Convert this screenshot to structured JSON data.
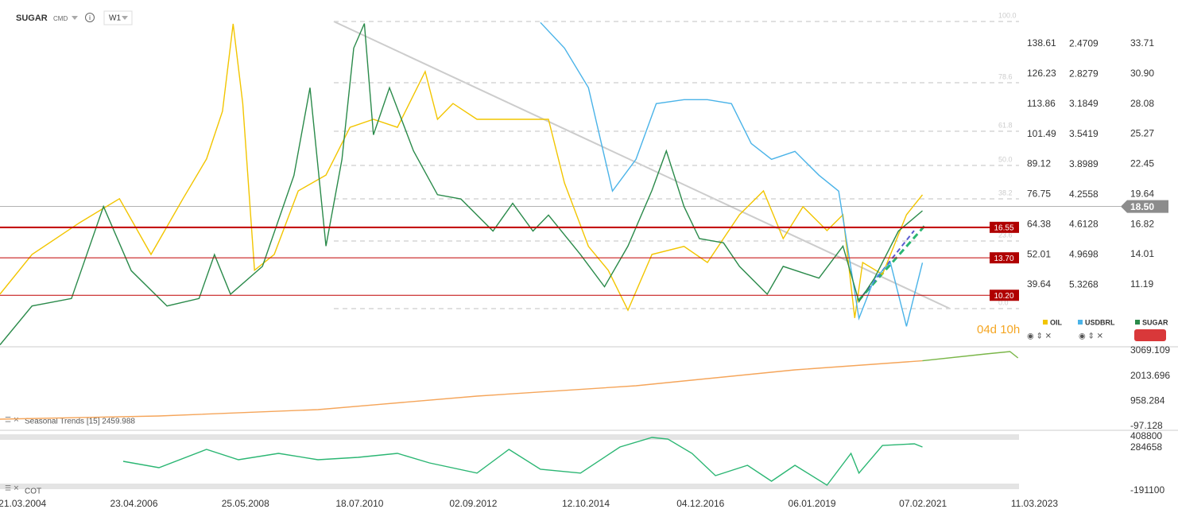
{
  "header": {
    "symbol": "SUGAR",
    "type": "CMD",
    "timeframe": "W1"
  },
  "chart_data": [
    {
      "type": "line",
      "countdown": "04d 10h",
      "xlim": [
        2003.8,
        2022.9
      ],
      "xticks": [
        {
          "value": 2004.22,
          "label": "21.03.2004"
        },
        {
          "value": 2006.31,
          "label": "23.04.2006"
        },
        {
          "value": 2008.4,
          "label": "25.05.2008"
        },
        {
          "value": 2010.54,
          "label": "18.07.2010"
        },
        {
          "value": 2012.67,
          "label": "02.09.2012"
        },
        {
          "value": 2014.78,
          "label": "12.10.2014"
        },
        {
          "value": 2016.93,
          "label": "04.12.2016"
        },
        {
          "value": 2019.02,
          "label": "06.01.2019"
        },
        {
          "value": 2021.1,
          "label": "07.02.2021"
        },
        {
          "value": 2023.19,
          "label": "11.03.2023"
        }
      ],
      "ylim": [
        5.46,
        37.8
      ],
      "yticks": [
        33.71,
        {
          "value": 30.9,
          "label": "30.90"
        },
        28.08,
        25.27,
        22.45,
        19.64,
        16.82,
        14.01,
        11.19
      ],
      "y2lim": [
        14.5,
        156.6
      ],
      "y2ticks": [
        138.61,
        126.23,
        113.86,
        101.49,
        89.12,
        76.75,
        64.38,
        52.01,
        39.64
      ],
      "y3lim": [
        1.95,
        6.05
      ],
      "y3_inverted": true,
      "y3ticks": [
        2.4709,
        2.8279,
        3.1849,
        3.5419,
        3.8989,
        4.2558,
        4.6128,
        4.9698,
        5.3268
      ],
      "levels": [
        16.55,
        {
          "value": 13.7,
          "label": "13.70"
        },
        {
          "value": 10.2,
          "label": "10.20"
        }
      ],
      "last_price": {
        "value": 18.5,
        "label": "18.50"
      },
      "fibonacci": [
        {
          "value": 35.79,
          "label": "100.0"
        },
        {
          "value": 30.07,
          "label": "78.6"
        },
        {
          "value": 25.53,
          "label": "61.8"
        },
        {
          "value": 22.34,
          "label": "50.0"
        },
        {
          "value": 19.21,
          "label": "38.2"
        },
        {
          "value": 15.27,
          "label": "23.6"
        },
        {
          "value": 8.95,
          "label": "0.0"
        }
      ],
      "series": [
        {
          "name": "OIL",
          "color": "#f2c500",
          "axis": "y2",
          "x": [
            2003.8,
            2004.4,
            2005.29,
            2006.04,
            2006.63,
            2007.23,
            2007.67,
            2007.97,
            2008.17,
            2008.35,
            2008.57,
            2008.94,
            2009.39,
            2009.91,
            2010.36,
            2010.8,
            2011.25,
            2011.77,
            2012.0,
            2012.29,
            2012.74,
            2013.34,
            2014.08,
            2014.38,
            2014.83,
            2015.2,
            2015.57,
            2016.02,
            2016.62,
            2017.06,
            2017.66,
            2018.11,
            2018.48,
            2018.85,
            2019.3,
            2019.6,
            2019.82,
            2019.97,
            2020.34,
            2020.79,
            2021.09
          ],
          "values": [
            35.8,
            52.1,
            65.1,
            75.0,
            52.1,
            75.0,
            91.3,
            110.9,
            146.8,
            114.1,
            45.6,
            52.1,
            78.2,
            84.7,
            104.3,
            107.6,
            104.3,
            127.2,
            107.6,
            114.1,
            107.6,
            107.6,
            107.6,
            81.5,
            55.4,
            45.6,
            29.2,
            52.1,
            55.4,
            48.8,
            68.4,
            78.2,
            58.6,
            71.7,
            61.9,
            68.4,
            26.0,
            48.8,
            43.9,
            68.4,
            76.6
          ]
        },
        {
          "name": "USDBRL",
          "color": "#4ab3e8",
          "axis": "y3",
          "x": [
            2013.93,
            2014.38,
            2014.83,
            2015.28,
            2015.72,
            2016.1,
            2016.62,
            2017.06,
            2017.51,
            2017.88,
            2018.26,
            2018.7,
            2019.15,
            2019.52,
            2019.9,
            2020.19,
            2020.49,
            2020.79,
            2021.09
          ],
          "values": [
            2.217,
            2.519,
            2.99,
            4.215,
            3.838,
            3.178,
            3.131,
            3.131,
            3.178,
            3.65,
            3.838,
            3.744,
            4.026,
            4.215,
            5.723,
            5.252,
            5.063,
            5.817,
            5.063
          ]
        },
        {
          "name": "SUGAR",
          "color": "#2a8a4a",
          "axis": "y",
          "x": [
            2003.8,
            2004.4,
            2005.14,
            2005.74,
            2006.26,
            2006.93,
            2007.53,
            2007.82,
            2008.12,
            2008.72,
            2009.31,
            2009.61,
            2009.91,
            2010.21,
            2010.43,
            2010.63,
            2010.8,
            2011.1,
            2011.55,
            2012.0,
            2012.44,
            2013.04,
            2013.41,
            2013.79,
            2014.08,
            2014.68,
            2015.13,
            2015.57,
            2016.02,
            2016.29,
            2016.62,
            2016.91,
            2017.36,
            2017.66,
            2018.18,
            2018.48,
            2019.15,
            2019.6,
            2019.9,
            2020.19,
            2020.64,
            2021.09
          ],
          "values": [
            5.57,
            9.2,
            9.9,
            18.5,
            12.5,
            9.2,
            9.9,
            14.0,
            10.3,
            12.9,
            21.4,
            29.6,
            14.8,
            22.9,
            33.3,
            35.6,
            25.2,
            29.6,
            23.7,
            19.6,
            19.2,
            16.2,
            18.8,
            16.2,
            17.7,
            14.0,
            11.0,
            14.8,
            20.0,
            23.7,
            18.5,
            15.5,
            15.1,
            12.9,
            10.3,
            12.9,
            11.8,
            14.8,
            9.6,
            11.8,
            16.2,
            18.1
          ]
        }
      ]
    },
    {
      "type": "line",
      "title": "Seasonal Trends [15] 2459.988",
      "ylim": [
        -230,
        3202
      ],
      "yticks": [
        3069.109,
        2013.696,
        958.284,
        -97.128
      ],
      "series": [
        {
          "color": "#f5a55a",
          "x": [
            2003.8,
            2006.78,
            2009.76,
            2012.74,
            2015.72,
            2018.7,
            2020.79,
            2021.09
          ],
          "values": [
            202,
            336,
            602,
            1169,
            1602,
            2269,
            2602,
            2650
          ]
        },
        {
          "color": "#7ab648",
          "x": [
            2021.09,
            2022.28,
            2022.73,
            2022.88
          ],
          "values": [
            2650,
            2936,
            3036,
            2769
          ]
        }
      ]
    },
    {
      "type": "line",
      "title": "COT",
      "ylim": [
        -147000,
        444000
      ],
      "yticks": [
        408800,
        284658,
        -191100
      ],
      "series": [
        {
          "color": "#2bb673",
          "x": [
            2006.11,
            2006.78,
            2007.67,
            2008.27,
            2009.02,
            2009.76,
            2010.51,
            2011.25,
            2011.85,
            2012.74,
            2013.34,
            2013.93,
            2014.68,
            2015.42,
            2016.02,
            2016.32,
            2016.77,
            2017.21,
            2017.81,
            2018.26,
            2018.7,
            2019.3,
            2019.75,
            2019.9,
            2020.34,
            2020.94,
            2021.09
          ],
          "values": [
            135230,
            64650,
            267560,
            152870,
            223450,
            152870,
            179340,
            223450,
            117590,
            4890,
            267560,
            47010,
            4890,
            294030,
            399890,
            382250,
            223450,
            -23560,
            91130,
            -85320,
            91130,
            -129420,
            223450,
            4890,
            311670,
            329310,
            294030
          ]
        }
      ]
    }
  ]
}
